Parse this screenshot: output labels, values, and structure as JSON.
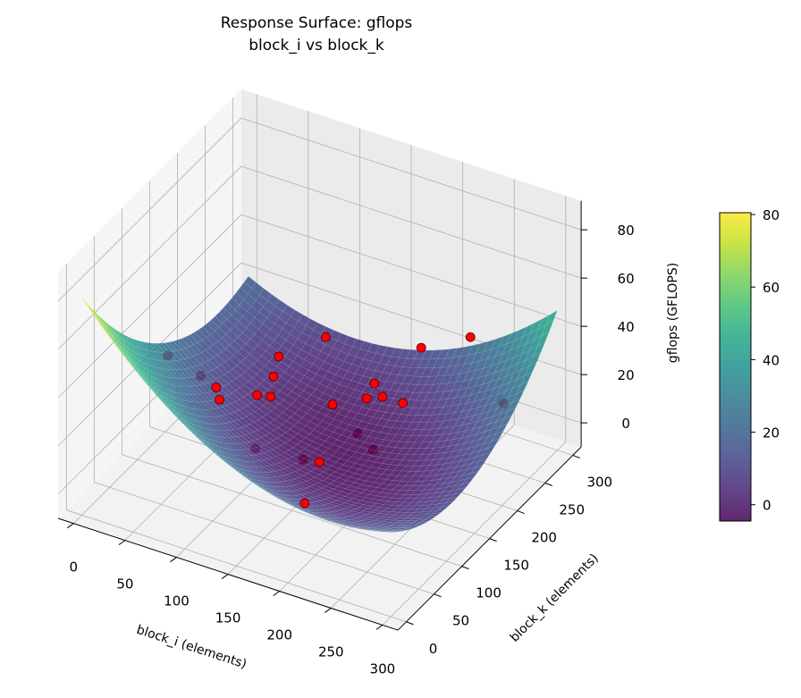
{
  "chart_data": {
    "type": "surface3d",
    "title": "Response Surface: gflops",
    "subtitle": "block_i vs block_k",
    "xlabel": "block_i (elements)",
    "ylabel": "block_k (elements)",
    "zlabel": "gflops (GFLOPS)",
    "xlim": [
      -15,
      315
    ],
    "ylim": [
      -15,
      315
    ],
    "zlim": [
      -10,
      92
    ],
    "xticks": [
      0,
      50,
      100,
      150,
      200,
      250,
      300
    ],
    "yticks": [
      0,
      50,
      100,
      150,
      200,
      250,
      300
    ],
    "zticks": [
      0,
      20,
      40,
      60,
      80
    ],
    "grid": true,
    "colormap": "viridis",
    "colorbar": {
      "ticks": [
        0,
        20,
        40,
        60,
        80
      ],
      "range": [
        -4.5,
        80.5
      ],
      "placement": "right"
    },
    "surface": {
      "x": [
        0,
        50,
        100,
        150,
        200,
        250,
        300
      ],
      "y": [
        0,
        50,
        100,
        150,
        200,
        250,
        300
      ],
      "z": [
        [
          80.0,
          57.2,
          39.4,
          26.9,
          19.4,
          17.2,
          20.0
        ],
        [
          58.0,
          37.4,
          22.0,
          11.8,
          6.7,
          6.7,
          11.8
        ],
        [
          41.1,
          22.9,
          9.8,
          1.8,
          -1.0,
          1.3,
          8.8
        ],
        [
          29.4,
          13.4,
          2.7,
          -3.0,
          -3.5,
          1.1,
          10.9
        ],
        [
          22.8,
          9.2,
          0.7,
          -2.7,
          -0.9,
          6.0,
          18.1
        ],
        [
          21.3,
          10.0,
          3.8,
          2.8,
          6.9,
          16.1,
          30.5
        ],
        [
          25.0,
          16.0,
          12.1,
          13.4,
          19.8,
          31.3,
          48.0
        ]
      ]
    },
    "points": {
      "color": "#ff0000",
      "data": [
        [
          101,
          252,
          20
        ],
        [
          205,
          231,
          35
        ],
        [
          242,
          251,
          40
        ],
        [
          270,
          258,
          15
        ],
        [
          163,
          99,
          -5
        ],
        [
          8,
          140,
          25
        ],
        [
          29,
          160,
          15
        ],
        [
          49,
          151,
          15
        ],
        [
          55,
          146,
          12
        ],
        [
          72,
          182,
          8
        ],
        [
          83,
          186,
          8
        ],
        [
          72,
          221,
          15
        ],
        [
          74,
          208,
          10
        ],
        [
          120,
          229,
          0
        ],
        [
          144,
          246,
          2
        ],
        [
          156,
          252,
          3
        ],
        [
          144,
          260,
          5
        ],
        [
          179,
          246,
          5
        ],
        [
          154,
          211,
          -3
        ],
        [
          177,
          196,
          -3
        ],
        [
          101,
          125,
          3
        ],
        [
          135,
          148,
          -2
        ],
        [
          147,
          155,
          -3
        ]
      ]
    }
  }
}
